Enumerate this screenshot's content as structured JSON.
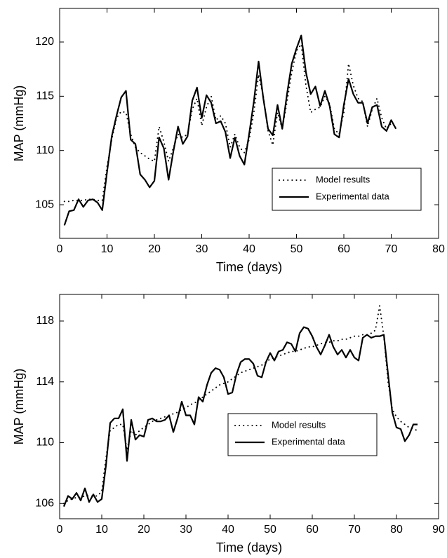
{
  "chart_data": [
    {
      "type": "line",
      "xlabel": "Time (days)",
      "ylabel": "MAP (mmHg)",
      "xlim": [
        0,
        80
      ],
      "ylim": [
        101.9,
        123.1
      ],
      "xticks": [
        0,
        10,
        20,
        30,
        40,
        50,
        60,
        70,
        80
      ],
      "yticks": [
        105,
        110,
        115,
        120
      ],
      "legend": "lower right",
      "x": [
        1,
        2,
        3,
        4,
        5,
        6,
        7,
        8,
        9,
        10,
        11,
        12,
        13,
        14,
        15,
        16,
        17,
        18,
        19,
        20,
        21,
        22,
        23,
        24,
        25,
        26,
        27,
        28,
        29,
        30,
        31,
        32,
        33,
        34,
        35,
        36,
        37,
        38,
        39,
        40,
        41,
        42,
        43,
        44,
        45,
        46,
        47,
        48,
        49,
        50,
        51,
        52,
        53,
        54,
        55,
        56,
        57,
        58,
        59,
        60,
        61,
        62,
        63,
        64,
        65,
        66,
        67,
        68,
        69,
        70,
        71
      ],
      "series": [
        {
          "name": "Model results",
          "color": "#000000",
          "dash": "dotted",
          "values": [
            105.3,
            105.3,
            105.4,
            105.4,
            105.4,
            105.5,
            105.5,
            105.4,
            105.4,
            108.5,
            111,
            113,
            113.6,
            113.5,
            111.5,
            110.3,
            109.8,
            109.5,
            109.2,
            109,
            112.2,
            110.8,
            109,
            110.2,
            111.5,
            111.2,
            111.5,
            113.8,
            114.8,
            112.3,
            114,
            115,
            112.8,
            113.2,
            112.5,
            110.3,
            111.5,
            110.3,
            109.8,
            111,
            113.5,
            117,
            115,
            111.8,
            110.5,
            113.5,
            112,
            114.5,
            117.2,
            119.2,
            119.8,
            116,
            113.5,
            113.8,
            114,
            115,
            114.3,
            112,
            111.5,
            113.5,
            118,
            116,
            114.8,
            114.5,
            112.2,
            113.8,
            114.8,
            113,
            112,
            112.5,
            112.2
          ]
        },
        {
          "name": "Experimental data",
          "color": "#000000",
          "dash": "solid",
          "values": [
            103.1,
            104.4,
            104.5,
            105.5,
            104.8,
            105.4,
            105.5,
            105.2,
            104.5,
            108,
            111.3,
            113.2,
            114.9,
            115.5,
            111,
            110.6,
            107.8,
            107.3,
            106.6,
            107.2,
            111.2,
            110.2,
            107.3,
            109.9,
            112.2,
            110.6,
            111.3,
            114.6,
            115.8,
            113,
            115.1,
            114.4,
            112.5,
            112.7,
            111.7,
            109.3,
            111.2,
            109.5,
            108.7,
            111.5,
            114.5,
            118.2,
            114.8,
            112,
            111.4,
            114.2,
            112,
            115.2,
            118,
            119.4,
            120.6,
            117.2,
            115.2,
            115.9,
            114.1,
            115.5,
            114.1,
            111.5,
            111.2,
            114.2,
            116.6,
            115.2,
            114.4,
            114.4,
            112.5,
            114,
            114.2,
            112.2,
            111.8,
            112.8,
            112
          ]
        }
      ]
    },
    {
      "type": "line",
      "xlabel": "Time (days)",
      "ylabel": "MAP (mmHg)",
      "xlim": [
        0,
        90
      ],
      "ylim": [
        105,
        119.75
      ],
      "xticks": [
        0,
        10,
        20,
        30,
        40,
        50,
        60,
        70,
        80,
        90
      ],
      "yticks": [
        106,
        110,
        114,
        118
      ],
      "legend": "center right",
      "x": [
        1,
        2,
        3,
        4,
        5,
        6,
        7,
        8,
        9,
        10,
        11,
        12,
        13,
        14,
        15,
        16,
        17,
        18,
        19,
        20,
        21,
        22,
        23,
        24,
        25,
        26,
        27,
        28,
        29,
        30,
        31,
        32,
        33,
        34,
        35,
        36,
        37,
        38,
        39,
        40,
        41,
        42,
        43,
        44,
        45,
        46,
        47,
        48,
        49,
        50,
        51,
        52,
        53,
        54,
        55,
        56,
        57,
        58,
        59,
        60,
        61,
        62,
        63,
        64,
        65,
        66,
        67,
        68,
        69,
        70,
        71,
        72,
        73,
        74,
        75,
        76,
        77,
        78,
        79,
        80,
        81,
        82,
        83,
        84,
        85
      ],
      "series": [
        {
          "name": "Model results",
          "color": "#000000",
          "dash": "dotted",
          "values": [
            106,
            106.2,
            106.3,
            106.4,
            106.4,
            106.5,
            106.5,
            106.5,
            106.5,
            106.8,
            109,
            110.8,
            111,
            111.2,
            111.2,
            109.5,
            110.8,
            110.5,
            110.8,
            111,
            111.2,
            111.4,
            111.5,
            111.6,
            111.7,
            111.8,
            111.9,
            112,
            112.2,
            112.3,
            112.5,
            112.6,
            112.8,
            113,
            113.2,
            113.4,
            113.6,
            113.8,
            113.9,
            114,
            114.2,
            114.4,
            114.6,
            114.7,
            114.8,
            114.9,
            115,
            115.1,
            115.3,
            115.5,
            115.6,
            115.7,
            115.8,
            115.9,
            116,
            116,
            116.1,
            116.2,
            116.3,
            116.3,
            116.4,
            116.5,
            116.6,
            116.6,
            116.7,
            116.7,
            116.8,
            116.8,
            116.9,
            117,
            117,
            117.1,
            117.1,
            117.2,
            117.4,
            119,
            117,
            114,
            112.2,
            111.7,
            111.4,
            111.2,
            111,
            110.9,
            110.8
          ]
        },
        {
          "name": "Experimental data",
          "color": "#000000",
          "dash": "solid",
          "values": [
            105.8,
            106.5,
            106.3,
            106.7,
            106.2,
            107,
            106.1,
            106.6,
            106.1,
            106.3,
            108.5,
            111.3,
            111.6,
            111.6,
            112.2,
            108.8,
            111.5,
            110.2,
            110.5,
            110.4,
            111.5,
            111.6,
            111.4,
            111.4,
            111.5,
            111.8,
            110.7,
            111.6,
            112.7,
            111.8,
            111.8,
            111.2,
            113,
            112.7,
            113.8,
            114.6,
            114.9,
            114.8,
            114.3,
            113.2,
            113.3,
            114.5,
            115.3,
            115.5,
            115.5,
            115.2,
            114.4,
            114.3,
            115.3,
            115.9,
            115.4,
            116,
            116.1,
            116.6,
            116.5,
            116,
            117.2,
            117.6,
            117.5,
            117,
            116.3,
            115.8,
            116.4,
            117.1,
            116.3,
            115.8,
            116.1,
            115.6,
            116.1,
            115.6,
            115.4,
            116.9,
            117.1,
            116.9,
            117,
            117,
            117.1,
            114.5,
            112,
            111,
            110.9,
            110.1,
            110.5,
            111.2,
            111.2
          ]
        }
      ]
    }
  ]
}
